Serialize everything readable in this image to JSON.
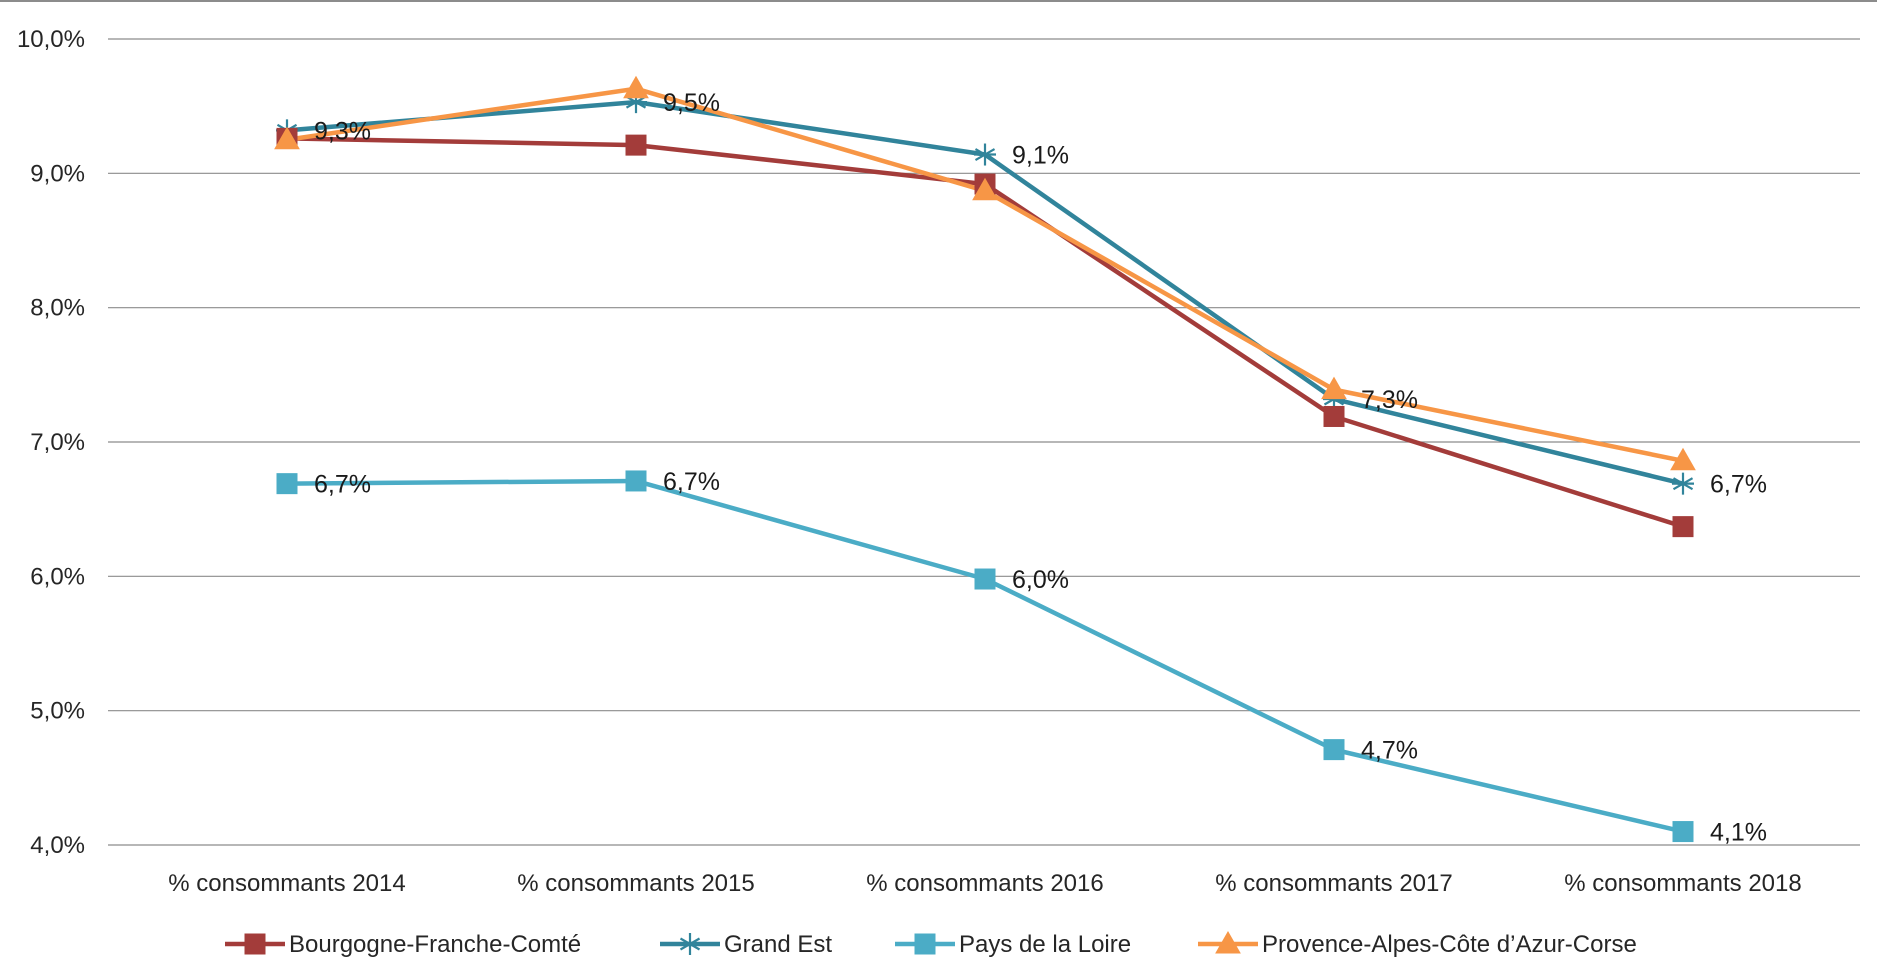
{
  "chart_data": {
    "type": "line",
    "title": "",
    "xlabel": "",
    "ylabel": "",
    "categories": [
      "% consommants 2014",
      "% consommants 2015",
      "% consommants 2016",
      "% consommants 2017",
      "% consommants 2018"
    ],
    "y_ticks": [
      "4,0%",
      "5,0%",
      "6,0%",
      "7,0%",
      "8,0%",
      "9,0%",
      "10,0%"
    ],
    "ylim": [
      4.0,
      10.0
    ],
    "grid": true,
    "legend_position": "bottom",
    "series": [
      {
        "name": "Bourgogne-Franche-Comté",
        "color": "#A33C3A",
        "marker": "square",
        "values": [
          9.26,
          9.21,
          8.92,
          7.19,
          6.37
        ],
        "data_labels": [
          "",
          "",
          "",
          "",
          ""
        ]
      },
      {
        "name": "Grand Est",
        "color": "#31849B",
        "marker": "asterisk",
        "values": [
          9.32,
          9.53,
          9.14,
          7.32,
          6.69
        ],
        "data_labels": [
          "9,3%",
          "9,5%",
          "9,1%",
          "7,3%",
          "6,7%"
        ]
      },
      {
        "name": "Pays de la Loire",
        "color": "#4BACC6",
        "marker": "square",
        "values": [
          6.69,
          6.71,
          5.98,
          4.71,
          4.1
        ],
        "data_labels": [
          "6,7%",
          "6,7%",
          "6,0%",
          "4,7%",
          "4,1%"
        ]
      },
      {
        "name": "Provence-Alpes-Côte d’Azur-Corse",
        "color": "#F79646",
        "marker": "triangle",
        "values": [
          9.25,
          9.63,
          8.87,
          7.39,
          6.86
        ],
        "data_labels": [
          "",
          "",
          "",
          "",
          ""
        ]
      }
    ]
  }
}
